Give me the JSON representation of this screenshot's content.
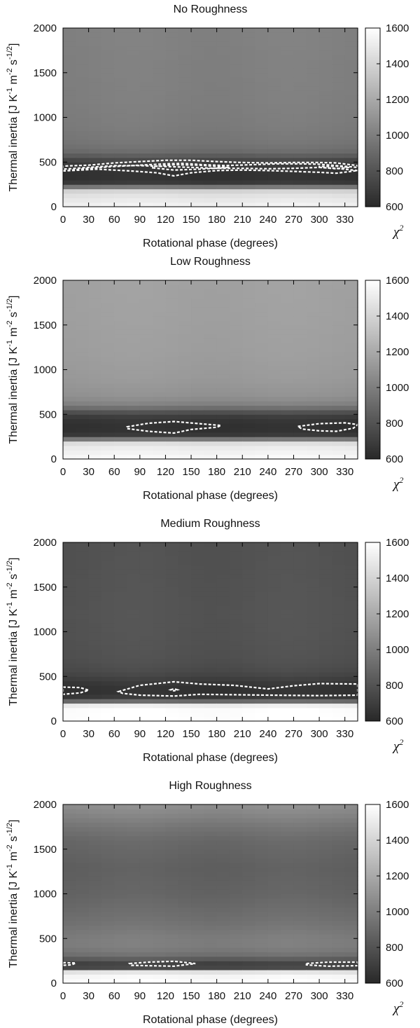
{
  "chart_data": [
    {
      "type": "heatmap",
      "title": "No Roughness",
      "xlabel": "Rotational phase (degrees)",
      "ylabel": "Thermal inertia [J K-1 m-2 s-1/2]",
      "xlim": [
        0,
        345
      ],
      "ylim": [
        0,
        2000
      ],
      "xticks": [
        0,
        30,
        60,
        90,
        120,
        150,
        180,
        210,
        240,
        270,
        300,
        330
      ],
      "yticks": [
        0,
        500,
        1000,
        1500,
        2000
      ],
      "colorbar": {
        "label": "χ2",
        "range": [
          600,
          1600
        ],
        "ticks": [
          600,
          800,
          1000,
          1200,
          1400,
          1600
        ]
      },
      "profile": {
        "thermal_inertia": [
          0,
          150,
          200,
          230,
          260,
          300,
          350,
          400,
          450,
          500,
          550,
          600,
          700,
          900,
          1200,
          1600,
          2000
        ],
        "chi2": [
          1550,
          1450,
          1350,
          900,
          700,
          650,
          645,
          650,
          675,
          700,
          790,
          900,
          960,
          990,
          1005,
          1010,
          1015
        ]
      },
      "phase_modulation": 10,
      "contours": [
        [
          [
            0,
            400
          ],
          [
            30,
            430
          ],
          [
            60,
            450
          ],
          [
            90,
            465
          ],
          [
            120,
            480
          ],
          [
            140,
            485
          ],
          [
            165,
            470
          ],
          [
            190,
            460
          ],
          [
            220,
            470
          ],
          [
            250,
            480
          ],
          [
            280,
            480
          ],
          [
            300,
            475
          ],
          [
            320,
            460
          ],
          [
            345,
            440
          ],
          [
            345,
            460
          ],
          [
            320,
            490
          ],
          [
            300,
            495
          ],
          [
            270,
            495
          ],
          [
            240,
            490
          ],
          [
            210,
            495
          ],
          [
            180,
            505
          ],
          [
            150,
            520
          ],
          [
            120,
            520
          ],
          [
            90,
            505
          ],
          [
            60,
            490
          ],
          [
            30,
            465
          ],
          [
            0,
            455
          ]
        ],
        [
          [
            0,
            400
          ],
          [
            40,
            420
          ],
          [
            80,
            400
          ],
          [
            110,
            380
          ],
          [
            130,
            345
          ],
          [
            150,
            380
          ],
          [
            180,
            405
          ],
          [
            210,
            410
          ],
          [
            240,
            405
          ],
          [
            270,
            395
          ],
          [
            300,
            385
          ],
          [
            320,
            375
          ],
          [
            345,
            405
          ],
          [
            345,
            405
          ],
          [
            320,
            430
          ],
          [
            300,
            440
          ],
          [
            270,
            430
          ],
          [
            240,
            425
          ],
          [
            210,
            430
          ],
          [
            180,
            430
          ],
          [
            150,
            440
          ],
          [
            120,
            450
          ],
          [
            90,
            460
          ],
          [
            60,
            460
          ],
          [
            30,
            440
          ],
          [
            0,
            420
          ]
        ],
        [
          [
            105,
            435
          ],
          [
            130,
            410
          ],
          [
            160,
            420
          ],
          [
            195,
            440
          ],
          [
            160,
            465
          ],
          [
            130,
            470
          ],
          [
            105,
            450
          ]
        ],
        [
          [
            300,
            440
          ],
          [
            320,
            425
          ],
          [
            335,
            440
          ],
          [
            320,
            455
          ],
          [
            300,
            450
          ]
        ]
      ]
    },
    {
      "type": "heatmap",
      "title": "Low Roughness",
      "xlabel": "Rotational phase (degrees)",
      "ylabel": "Thermal inertia [J K-1 m-2 s-1/2]",
      "xlim": [
        0,
        345
      ],
      "ylim": [
        0,
        2000
      ],
      "xticks": [
        0,
        30,
        60,
        90,
        120,
        150,
        180,
        210,
        240,
        270,
        300,
        330
      ],
      "yticks": [
        0,
        500,
        1000,
        1500,
        2000
      ],
      "colorbar": {
        "label": "χ2",
        "range": [
          600,
          1600
        ],
        "ticks": [
          600,
          800,
          1000,
          1200,
          1400,
          1600
        ]
      },
      "profile": {
        "thermal_inertia": [
          0,
          150,
          200,
          230,
          260,
          300,
          350,
          400,
          450,
          500,
          550,
          600,
          700,
          900,
          1200,
          1600,
          2000
        ],
        "chi2": [
          1580,
          1500,
          1400,
          900,
          700,
          650,
          640,
          645,
          670,
          720,
          860,
          1000,
          1090,
          1130,
          1150,
          1160,
          1165
        ]
      },
      "phase_modulation": 8,
      "contours": [
        [
          [
            75,
            360
          ],
          [
            100,
            400
          ],
          [
            130,
            420
          ],
          [
            160,
            395
          ],
          [
            185,
            375
          ],
          [
            180,
            355
          ],
          [
            150,
            330
          ],
          [
            130,
            290
          ],
          [
            100,
            310
          ],
          [
            75,
            340
          ]
        ],
        [
          [
            275,
            365
          ],
          [
            300,
            395
          ],
          [
            330,
            405
          ],
          [
            345,
            385
          ],
          [
            340,
            345
          ],
          [
            320,
            310
          ],
          [
            300,
            315
          ],
          [
            280,
            335
          ]
        ]
      ]
    },
    {
      "type": "heatmap",
      "title": "Medium Roughness",
      "xlabel": "Rotational phase (degrees)",
      "ylabel": "Thermal inertia [J K-1 m-2 s-1/2]",
      "xlim": [
        0,
        345
      ],
      "ylim": [
        0,
        2000
      ],
      "xticks": [
        0,
        30,
        60,
        90,
        120,
        150,
        180,
        210,
        240,
        270,
        300,
        330
      ],
      "yticks": [
        0,
        500,
        1000,
        1500,
        2000
      ],
      "colorbar": {
        "label": "χ2",
        "range": [
          600,
          1600
        ],
        "ticks": [
          600,
          800,
          1000,
          1200,
          1400,
          1600
        ]
      },
      "profile": {
        "thermal_inertia": [
          0,
          150,
          200,
          230,
          260,
          300,
          350,
          400,
          450,
          500,
          550,
          600,
          700,
          900,
          1200,
          1600,
          2000
        ],
        "chi2": [
          1600,
          1590,
          1450,
          800,
          700,
          650,
          645,
          655,
          690,
          725,
          755,
          770,
          790,
          800,
          805,
          800,
          795
        ]
      },
      "phase_modulation": 12,
      "contours": [
        [
          [
            0,
            380
          ],
          [
            20,
            375
          ],
          [
            30,
            345
          ],
          [
            20,
            315
          ],
          [
            0,
            300
          ]
        ],
        [
          [
            65,
            330
          ],
          [
            90,
            400
          ],
          [
            130,
            440
          ],
          [
            160,
            415
          ],
          [
            200,
            400
          ],
          [
            240,
            360
          ],
          [
            270,
            395
          ],
          [
            300,
            420
          ],
          [
            345,
            415
          ],
          [
            345,
            290
          ],
          [
            300,
            285
          ],
          [
            240,
            290
          ],
          [
            200,
            295
          ],
          [
            160,
            300
          ],
          [
            130,
            280
          ],
          [
            90,
            290
          ],
          [
            70,
            310
          ]
        ],
        [
          [
            126,
            350
          ],
          [
            130,
            362
          ],
          [
            134,
            350
          ],
          [
            130,
            338
          ]
        ]
      ]
    },
    {
      "type": "heatmap",
      "title": "High Roughness",
      "xlabel": "Rotational phase (degrees)",
      "ylabel": "Thermal inertia [J K-1 m-2 s-1/2]",
      "xlim": [
        0,
        345
      ],
      "ylim": [
        0,
        2000
      ],
      "xticks": [
        0,
        30,
        60,
        90,
        120,
        150,
        180,
        210,
        240,
        270,
        300,
        330
      ],
      "yticks": [
        0,
        500,
        1000,
        1500,
        2000
      ],
      "colorbar": {
        "label": "χ2",
        "range": [
          600,
          1600
        ],
        "ticks": [
          600,
          800,
          1000,
          1200,
          1400,
          1600
        ]
      },
      "profile": {
        "thermal_inertia": [
          0,
          100,
          150,
          175,
          200,
          230,
          260,
          300,
          400,
          500,
          700,
          1000,
          1300,
          1600,
          1750,
          1900,
          2000
        ],
        "chi2": [
          1600,
          1550,
          1400,
          750,
          700,
          730,
          800,
          920,
          1000,
          1000,
          940,
          880,
          860,
          900,
          960,
          1040,
          1080
        ]
      },
      "phase_modulation": 12,
      "contours": [
        [
          [
            0,
            230
          ],
          [
            15,
            225
          ],
          [
            10,
            205
          ],
          [
            0,
            200
          ]
        ],
        [
          [
            78,
            220
          ],
          [
            100,
            235
          ],
          [
            130,
            245
          ],
          [
            155,
            220
          ],
          [
            130,
            190
          ],
          [
            100,
            195
          ],
          [
            80,
            200
          ]
        ],
        [
          [
            285,
            220
          ],
          [
            310,
            235
          ],
          [
            345,
            235
          ],
          [
            345,
            195
          ],
          [
            310,
            190
          ],
          [
            285,
            205
          ]
        ]
      ]
    }
  ]
}
